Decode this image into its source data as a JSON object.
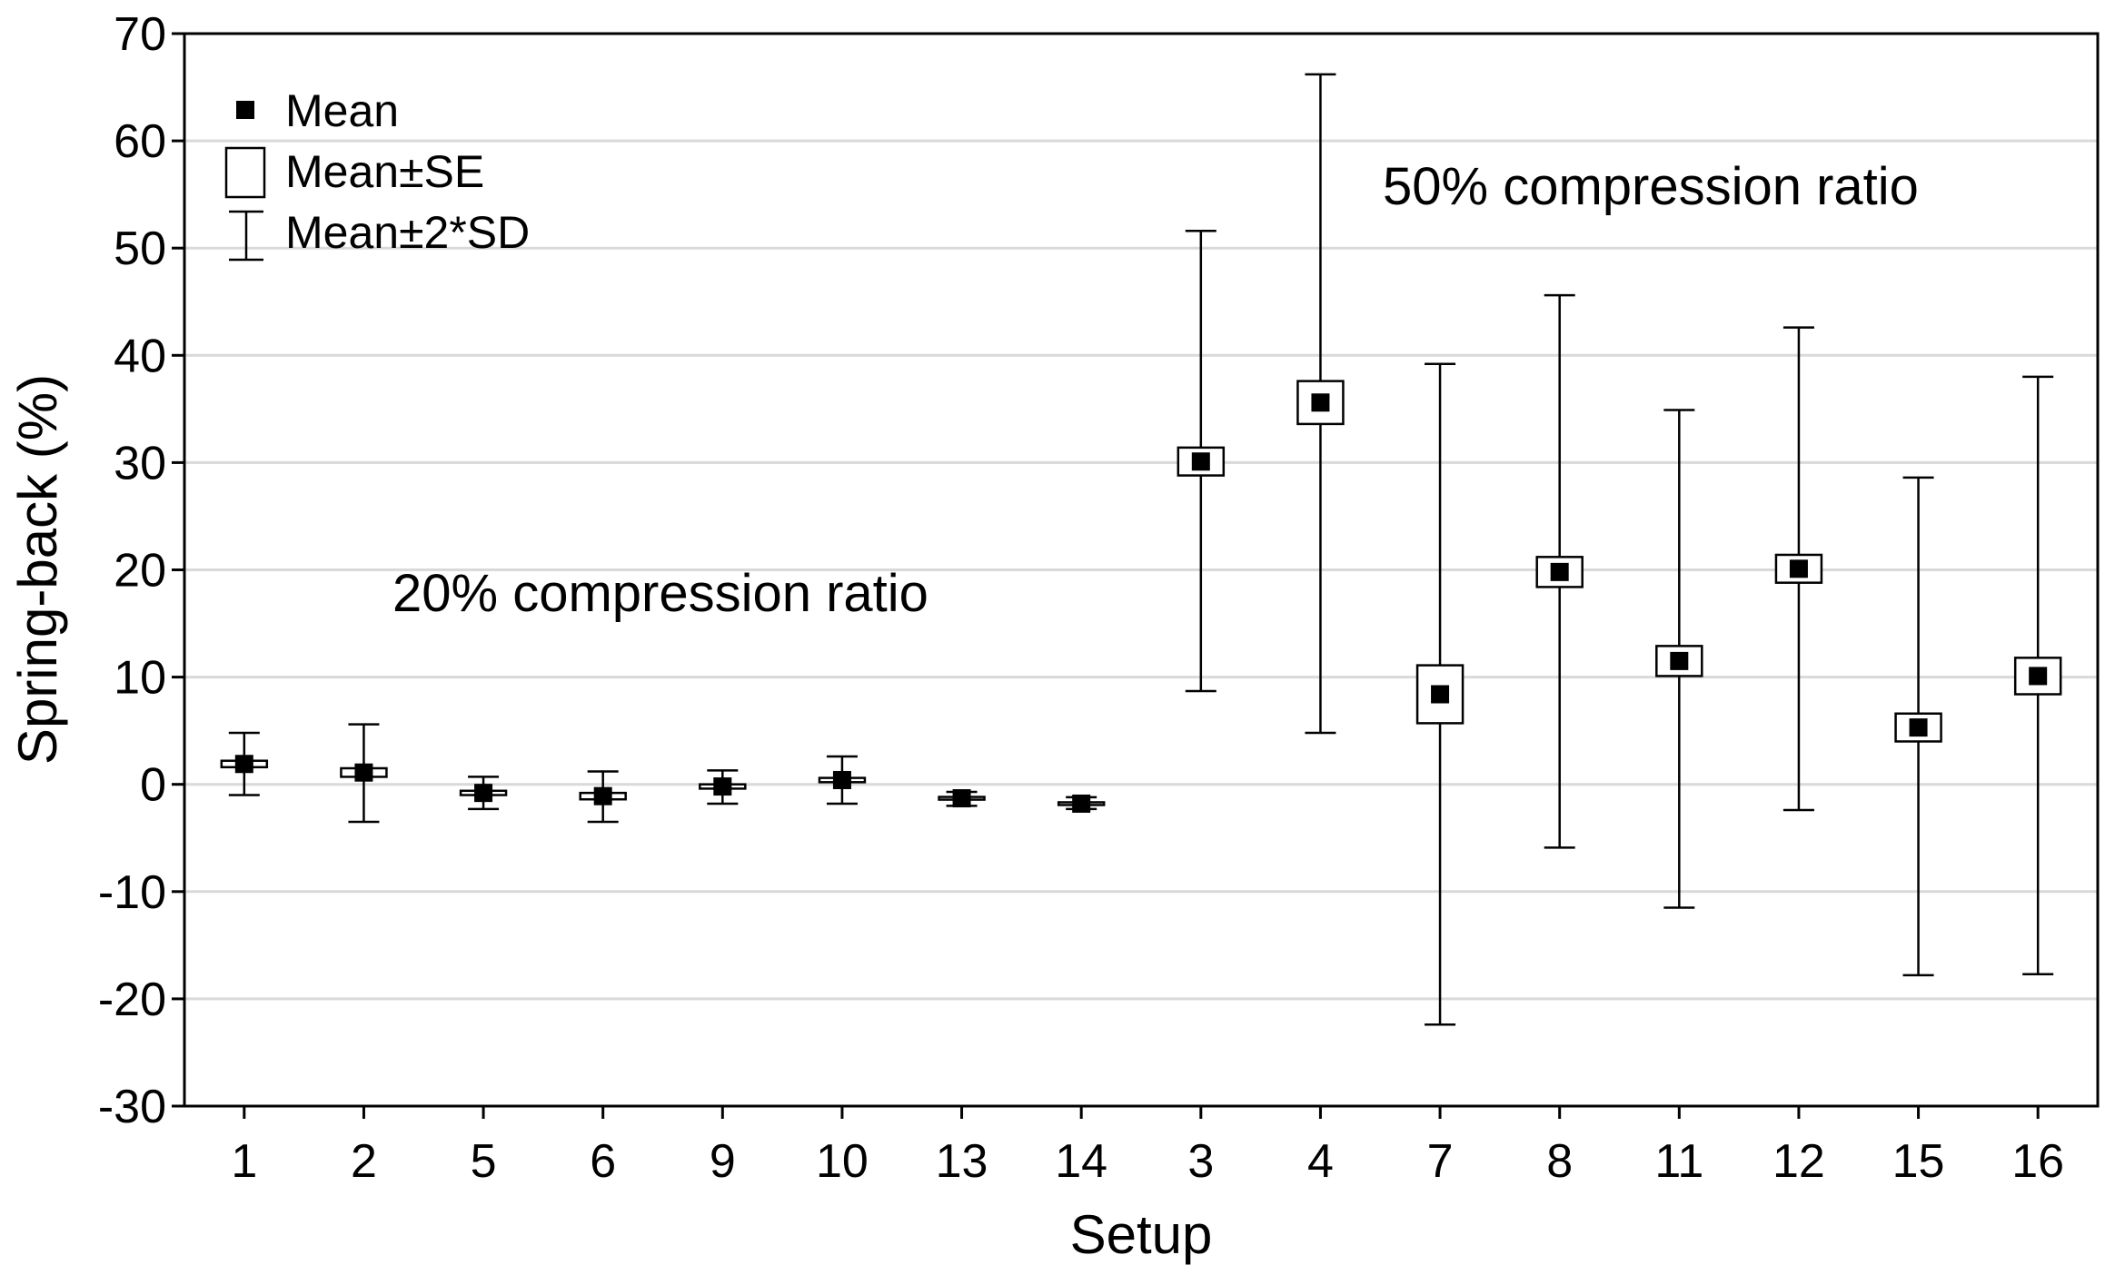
{
  "chart_data": {
    "type": "scatter",
    "subtype": "mean-whisker",
    "xlabel": "Setup",
    "ylabel": "Spring-back (%)",
    "ylim": [
      -30,
      70
    ],
    "yticks": [
      -30,
      -20,
      -10,
      0,
      10,
      20,
      30,
      40,
      50,
      60,
      70
    ],
    "grid": "horizontal",
    "categories": [
      "1",
      "2",
      "5",
      "6",
      "9",
      "10",
      "13",
      "14",
      "3",
      "4",
      "7",
      "8",
      "11",
      "12",
      "15",
      "16"
    ],
    "series": [
      {
        "name": "Mean",
        "values": [
          1.9,
          1.1,
          -0.8,
          -1.1,
          -0.2,
          0.4,
          -1.3,
          -1.8,
          30.1,
          35.6,
          8.4,
          19.8,
          11.5,
          20.1,
          5.3,
          10.1
        ]
      },
      {
        "name": "Mean±SE",
        "lower": [
          1.6,
          0.7,
          -1.0,
          -1.4,
          -0.4,
          0.2,
          -1.4,
          -1.9,
          28.8,
          33.6,
          5.7,
          18.4,
          10.1,
          18.8,
          4.0,
          8.4
        ],
        "upper": [
          2.2,
          1.5,
          -0.6,
          -0.8,
          0.0,
          0.6,
          -1.2,
          -1.7,
          31.4,
          37.6,
          11.1,
          21.2,
          12.9,
          21.4,
          6.6,
          11.8
        ]
      },
      {
        "name": "Mean±2*SD",
        "lower": [
          -1.0,
          -3.5,
          -2.3,
          -3.5,
          -1.8,
          -1.8,
          -2.0,
          -2.3,
          8.7,
          4.8,
          -22.4,
          -5.9,
          -11.5,
          -2.4,
          -17.8,
          -17.7
        ],
        "upper": [
          4.8,
          5.6,
          0.7,
          1.2,
          1.3,
          2.6,
          -0.7,
          -1.2,
          51.6,
          66.2,
          39.2,
          45.6,
          34.9,
          42.6,
          28.6,
          38.0
        ]
      }
    ],
    "legend": {
      "position": "top-left",
      "entries": [
        "Mean",
        "Mean±SE",
        "Mean±2*SD"
      ]
    },
    "annotations": [
      "20% compression ratio",
      "50% compression ratio"
    ]
  }
}
